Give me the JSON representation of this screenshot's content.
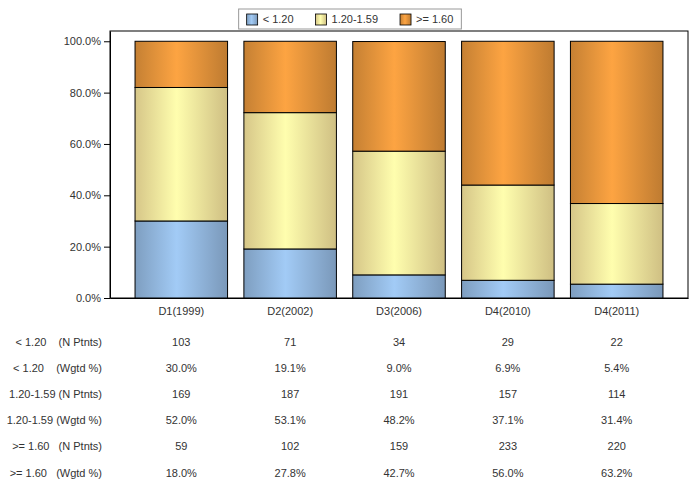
{
  "chart_data": {
    "type": "bar",
    "stacked": true,
    "legend": "top",
    "categories": [
      "D1(1999)",
      "D2(2002)",
      "D3(2006)",
      "D4(2010)",
      "D4(2011)"
    ],
    "ylim": [
      0,
      104
    ],
    "yticks": [
      {
        "value": 0,
        "label": "0.0%"
      },
      {
        "value": 20,
        "label": "20.0%"
      },
      {
        "value": 40,
        "label": "40.0%"
      },
      {
        "value": 60,
        "label": "60.0%"
      },
      {
        "value": 80,
        "label": "80.0%"
      },
      {
        "value": 100,
        "label": "100.0%"
      }
    ],
    "series": [
      {
        "name": "< 1.20",
        "color": "#8fb3d9",
        "values": [
          30.0,
          19.1,
          9.0,
          6.9,
          5.4
        ],
        "value_labels": [
          "30.0%",
          "19.1%",
          "9.0%",
          "6.9%",
          "5.4%"
        ],
        "n_patients": [
          103,
          71,
          34,
          29,
          22
        ],
        "n_label": "< 1.20    (N Ptnts)",
        "pct_label": "< 1.20    (Wgtd %)"
      },
      {
        "name": "1.20-1.59",
        "color": "#f3e09a",
        "values": [
          52.0,
          53.1,
          48.2,
          37.1,
          31.4
        ],
        "value_labels": [
          "52.0%",
          "53.1%",
          "48.2%",
          "37.1%",
          "31.4%"
        ],
        "n_patients": [
          169,
          187,
          191,
          157,
          114
        ],
        "n_label": "1.20-1.59 (N Ptnts)",
        "pct_label": "1.20-1.59 (Wgtd %)"
      },
      {
        "name": ">= 1.60",
        "color": "#df913a",
        "values": [
          18.0,
          27.8,
          42.7,
          56.0,
          63.2
        ],
        "value_labels": [
          "18.0%",
          "27.8%",
          "42.7%",
          "56.0%",
          "63.2%"
        ],
        "n_patients": [
          59,
          102,
          159,
          233,
          220
        ],
        "n_label": ">= 1.60   (N Ptnts)",
        "pct_label": ">= 1.60   (Wgtd %)"
      }
    ]
  }
}
